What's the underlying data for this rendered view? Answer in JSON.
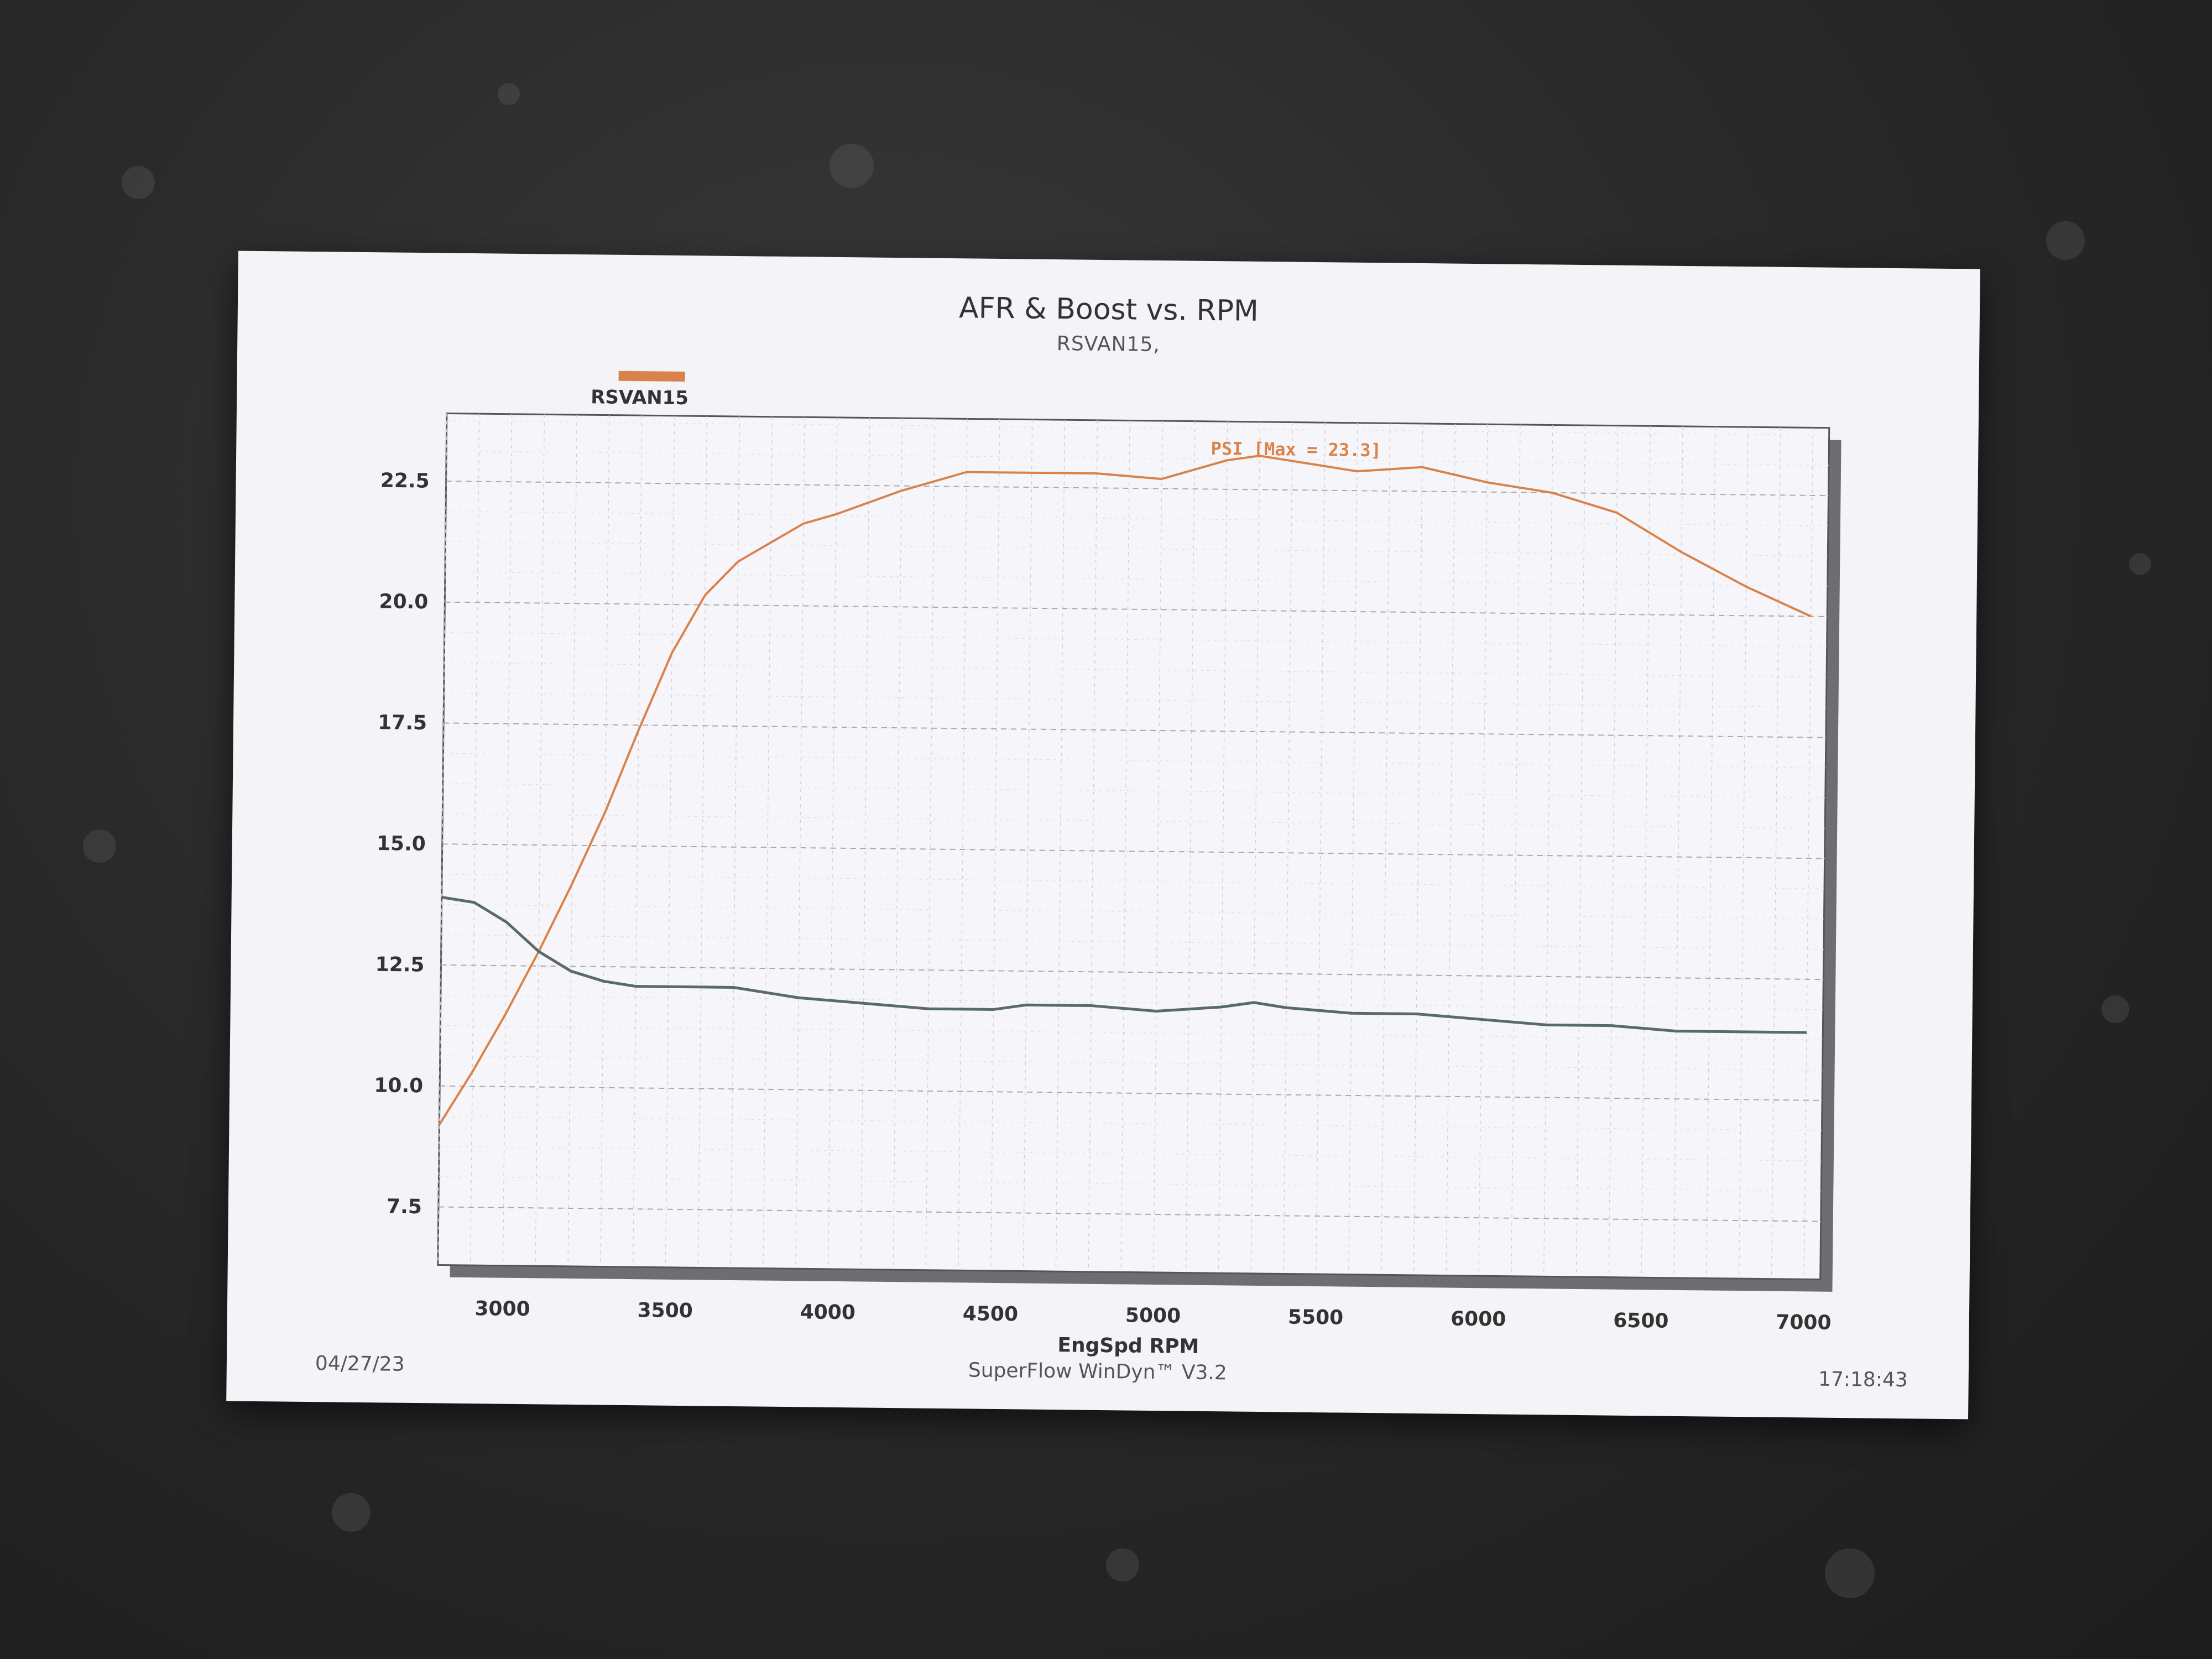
{
  "chart_data": {
    "type": "line",
    "title": "AFR & Boost vs. RPM",
    "subtitle": "RSVAN15,",
    "legend": [
      "RSVAN15"
    ],
    "xlabel": "EngSpd RPM",
    "ylabel": "",
    "xlim": [
      2800,
      7050
    ],
    "ylim": [
      6.3,
      23.9
    ],
    "xticks": [
      3000,
      3500,
      4000,
      4500,
      5000,
      5500,
      6000,
      6500,
      7000
    ],
    "yticks": [
      7.5,
      10.0,
      12.5,
      15.0,
      17.5,
      20.0,
      22.5
    ],
    "grid": true,
    "series": [
      {
        "name": "PSI",
        "color": "#d9824a",
        "annotation": "PSI   [Max = 23.3]",
        "x": [
          2800,
          2900,
          3000,
          3100,
          3200,
          3300,
          3400,
          3500,
          3600,
          3700,
          3800,
          3900,
          4000,
          4200,
          4400,
          4600,
          4800,
          5000,
          5100,
          5200,
          5300,
          5400,
          5500,
          5600,
          5800,
          6000,
          6200,
          6400,
          6600,
          6800,
          7000
        ],
        "y": [
          9.2,
          10.3,
          11.5,
          12.8,
          14.2,
          15.7,
          17.4,
          19.0,
          20.2,
          20.9,
          21.3,
          21.7,
          21.9,
          22.4,
          22.8,
          22.8,
          22.8,
          22.7,
          22.9,
          23.1,
          23.2,
          23.1,
          23.0,
          22.9,
          23.0,
          22.7,
          22.5,
          22.1,
          21.3,
          20.6,
          20.0
        ]
      },
      {
        "name": "AFR",
        "color": "#5a6a68",
        "x": [
          2800,
          2900,
          3000,
          3100,
          3200,
          3300,
          3400,
          3500,
          3700,
          3900,
          4100,
          4300,
          4500,
          4600,
          4800,
          5000,
          5200,
          5300,
          5400,
          5600,
          5800,
          6000,
          6200,
          6400,
          6600,
          6800,
          7000
        ],
        "y": [
          13.9,
          13.8,
          13.4,
          12.8,
          12.4,
          12.2,
          12.1,
          12.1,
          12.1,
          11.9,
          11.8,
          11.7,
          11.7,
          11.8,
          11.8,
          11.7,
          11.8,
          11.9,
          11.8,
          11.7,
          11.7,
          11.6,
          11.5,
          11.5,
          11.4,
          11.4,
          11.4
        ]
      }
    ]
  },
  "footer": {
    "date": "04/27/23",
    "software": "SuperFlow WinDyn™ V3.2",
    "time": "17:18:43"
  }
}
